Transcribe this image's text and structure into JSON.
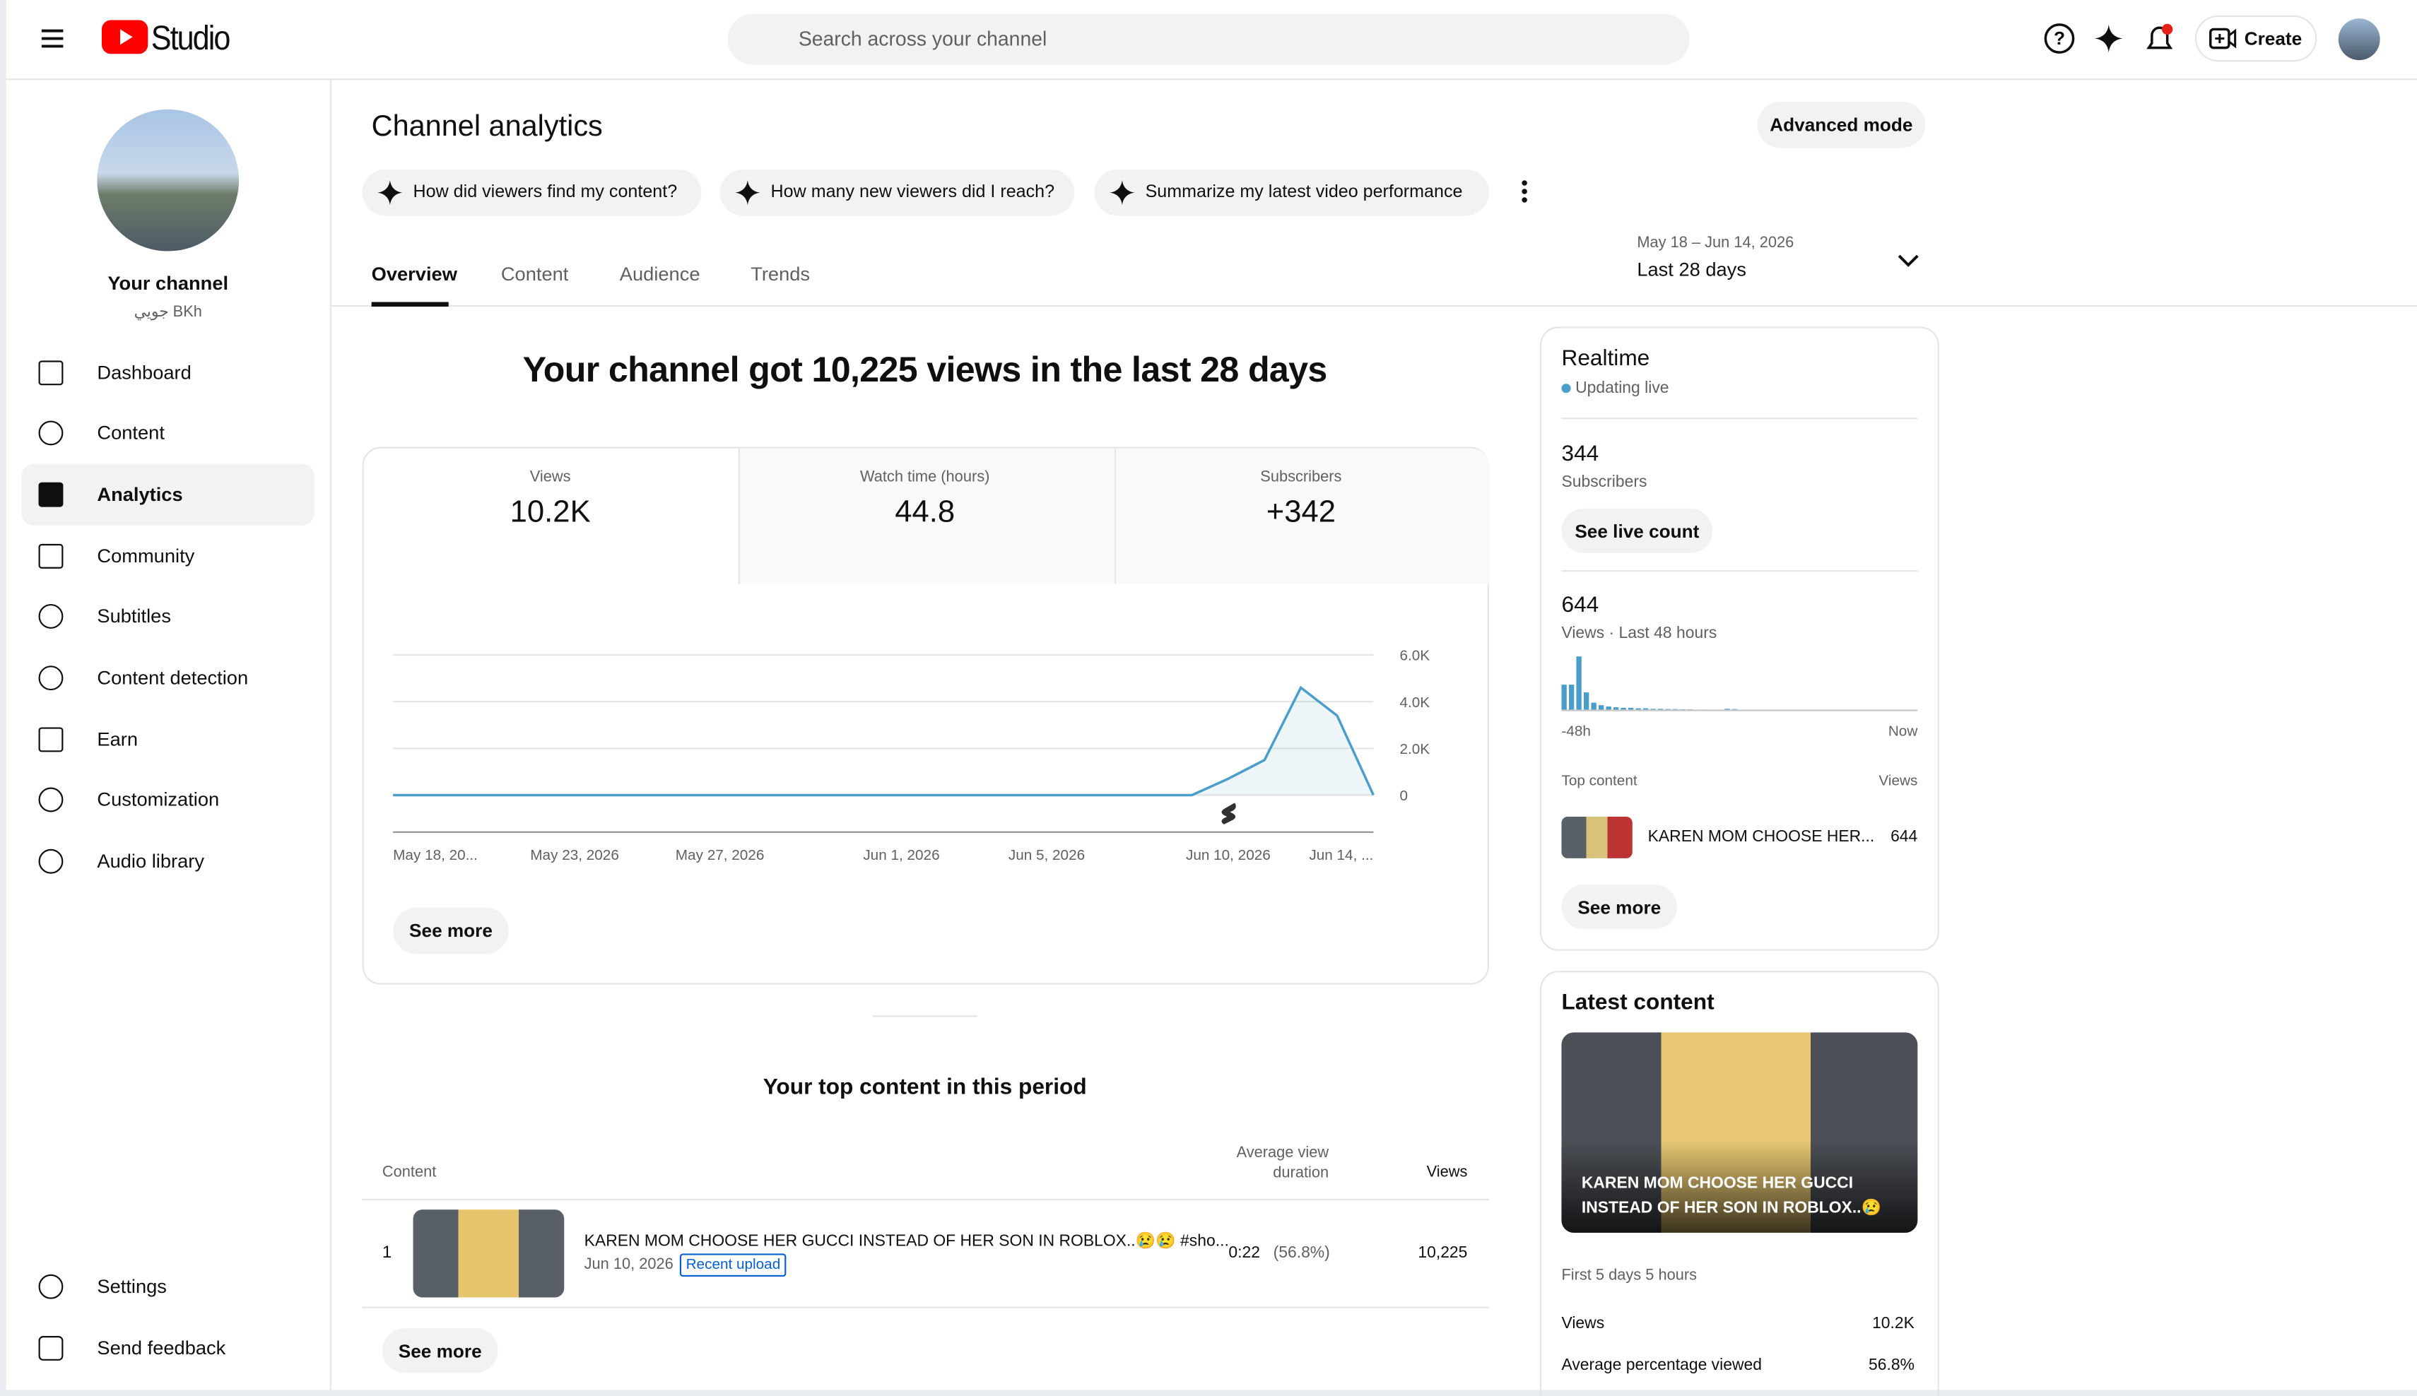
{
  "header": {
    "logo": "Studio",
    "search_placeholder": "Search across your channel",
    "create": "Create"
  },
  "sidebar": {
    "channel_name": "Your channel",
    "channel_handle": "جويي BKh",
    "nav": [
      "Dashboard",
      "Content",
      "Analytics",
      "Community",
      "Subtitles",
      "Content detection",
      "Earn",
      "Customization",
      "Audio library"
    ],
    "footer": [
      "Settings",
      "Send feedback"
    ]
  },
  "main": {
    "title": "Channel analytics",
    "advanced": "Advanced mode",
    "prompts": [
      "How did viewers find my content?",
      "How many new viewers did I reach?",
      "Summarize my latest video performance"
    ],
    "tabs": [
      "Overview",
      "Content",
      "Audience",
      "Trends"
    ],
    "date_range": "May 18 – Jun 14, 2026",
    "period": "Last 28 days",
    "headline": "Your channel got 10,225 views in the last 28 days",
    "metrics": [
      {
        "label": "Views",
        "value": "10.2K"
      },
      {
        "label": "Watch time (hours)",
        "value": "44.8"
      },
      {
        "label": "Subscribers",
        "value": "+342"
      }
    ],
    "see_more": "See more"
  },
  "chart_data": {
    "type": "line",
    "color": "#4a9ec9",
    "grid": true,
    "x": [
      "2026-05-18",
      "2026-05-19",
      "2026-05-20",
      "2026-05-21",
      "2026-05-22",
      "2026-05-23",
      "2026-05-24",
      "2026-05-25",
      "2026-05-26",
      "2026-05-27",
      "2026-05-28",
      "2026-05-29",
      "2026-05-30",
      "2026-05-31",
      "2026-06-01",
      "2026-06-02",
      "2026-06-03",
      "2026-06-04",
      "2026-06-05",
      "2026-06-06",
      "2026-06-07",
      "2026-06-08",
      "2026-06-09",
      "2026-06-10",
      "2026-06-11",
      "2026-06-12",
      "2026-06-13",
      "2026-06-14"
    ],
    "values": [
      0,
      0,
      0,
      0,
      0,
      0,
      0,
      0,
      0,
      0,
      0,
      0,
      0,
      0,
      0,
      0,
      0,
      0,
      0,
      0,
      0,
      0,
      0,
      700,
      1500,
      4600,
      3400,
      0
    ],
    "xticks": [
      {
        "value": "2026-05-18",
        "label": "May 18, 20..."
      },
      {
        "value": "2026-05-23",
        "label": "May 23, 2026"
      },
      {
        "value": "2026-05-27",
        "label": "May 27, 2026"
      },
      {
        "value": "2026-06-01",
        "label": "Jun 1, 2026"
      },
      {
        "value": "2026-06-05",
        "label": "Jun 5, 2026"
      },
      {
        "value": "2026-06-10",
        "label": "Jun 10, 2026"
      },
      {
        "value": "2026-06-14",
        "label": "Jun 14, ..."
      }
    ],
    "ylim": [
      0,
      6000
    ],
    "yticks": [
      0,
      {
        "value": 2000,
        "label": "2.0K"
      },
      {
        "value": 4000,
        "label": "4.0K"
      },
      {
        "value": 6000,
        "label": "6.0K"
      }
    ]
  },
  "top_content": {
    "title": "Your top content in this period",
    "columns": [
      "Content",
      "Average view duration",
      "Views"
    ],
    "rows": [
      {
        "rank": "1",
        "title": "KAREN MOM CHOOSE HER GUCCI INSTEAD OF HER SON IN ROBLOX..😢😢 #sho...",
        "date": "Jun 10, 2026",
        "badge": "Recent upload",
        "duration": "0:22",
        "percent": "(56.8%)",
        "views": "10,225"
      }
    ],
    "see_more": "See more"
  },
  "realtime": {
    "title": "Realtime",
    "status": "Updating live",
    "subscribers": "344",
    "subscribers_label": "Subscribers",
    "see_live": "See live count",
    "views": "644",
    "views_label": "Views · Last 48 hours",
    "hourly_views": [
      100,
      100,
      210,
      70,
      30,
      20,
      15,
      12,
      10,
      10,
      8,
      8,
      6,
      6,
      5,
      5,
      4,
      4,
      3,
      3,
      2,
      2,
      6,
      5,
      0,
      0,
      0,
      0,
      0,
      0,
      0,
      0,
      0,
      0,
      0,
      0,
      0,
      0,
      0,
      0,
      0,
      0,
      0,
      0,
      0,
      0,
      0,
      0
    ],
    "ylim": [
      0,
      240
    ],
    "start_label": "-48h",
    "end_label": "Now",
    "top_label": "Top content",
    "top_views_label": "Views",
    "top_title": "KAREN MOM CHOOSE HER...",
    "top_views": "644",
    "see_more": "See more"
  },
  "latest": {
    "title": "Latest content",
    "video_title": "KAREN MOM CHOOSE HER GUCCI INSTEAD OF HER SON IN ROBLOX..😢😢...",
    "period": "First 5 days 5 hours",
    "stats": [
      {
        "label": "Views",
        "value": "10.2K"
      },
      {
        "label": "Average percentage viewed",
        "value": "56.8%"
      }
    ]
  }
}
